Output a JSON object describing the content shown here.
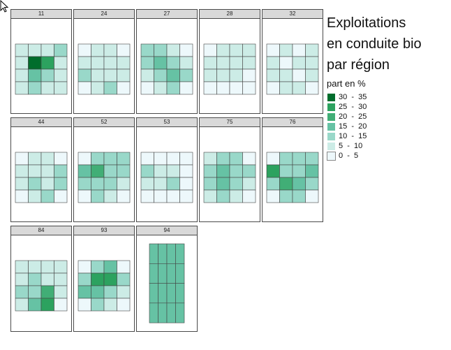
{
  "title_lines": [
    "Exploitations",
    "en conduite bio",
    "par région"
  ],
  "legend": {
    "title": "part en %",
    "classes": [
      {
        "label": "30  -  35",
        "color": "#006d2c"
      },
      {
        "label": "25  -  30",
        "color": "#2ca25f"
      },
      {
        "label": "20  -  25",
        "color": "#41ae76"
      },
      {
        "label": "15  -  20",
        "color": "#66c2a4"
      },
      {
        "label": "10  -  15",
        "color": "#99d8c9"
      },
      {
        "label": "5  -  10",
        "color": "#ccece6"
      },
      {
        "label": "0  -  5",
        "color": "#edf8fb"
      }
    ]
  },
  "panels": [
    {
      "label": "11",
      "cells": [
        [
          5,
          5,
          5,
          4
        ],
        [
          5,
          0,
          1,
          5
        ],
        [
          5,
          3,
          4,
          5
        ],
        [
          5,
          4,
          5,
          5
        ]
      ]
    },
    {
      "label": "24",
      "cells": [
        [
          6,
          5,
          5,
          6
        ],
        [
          5,
          5,
          5,
          5
        ],
        [
          4,
          5,
          5,
          5
        ],
        [
          6,
          5,
          4,
          6
        ]
      ]
    },
    {
      "label": "27",
      "cells": [
        [
          4,
          4,
          5,
          6
        ],
        [
          4,
          3,
          4,
          5
        ],
        [
          5,
          4,
          3,
          4
        ],
        [
          6,
          5,
          4,
          6
        ]
      ]
    },
    {
      "label": "28",
      "cells": [
        [
          6,
          5,
          5,
          5
        ],
        [
          5,
          5,
          5,
          5
        ],
        [
          5,
          5,
          5,
          6
        ],
        [
          6,
          6,
          6,
          6
        ]
      ]
    },
    {
      "label": "32",
      "cells": [
        [
          6,
          5,
          6,
          5
        ],
        [
          5,
          6,
          5,
          5
        ],
        [
          5,
          5,
          6,
          5
        ],
        [
          6,
          5,
          5,
          6
        ]
      ]
    },
    {
      "label": "44",
      "cells": [
        [
          6,
          5,
          5,
          6
        ],
        [
          5,
          5,
          5,
          4
        ],
        [
          5,
          4,
          5,
          4
        ],
        [
          6,
          5,
          4,
          6
        ]
      ]
    },
    {
      "label": "52",
      "cells": [
        [
          6,
          4,
          4,
          4
        ],
        [
          3,
          2,
          4,
          4
        ],
        [
          4,
          4,
          4,
          5
        ],
        [
          6,
          4,
          5,
          6
        ]
      ]
    },
    {
      "label": "53",
      "cells": [
        [
          6,
          6,
          6,
          6
        ],
        [
          4,
          5,
          5,
          6
        ],
        [
          5,
          5,
          4,
          6
        ],
        [
          6,
          6,
          6,
          6
        ]
      ]
    },
    {
      "label": "75",
      "cells": [
        [
          5,
          4,
          4,
          6
        ],
        [
          4,
          3,
          4,
          4
        ],
        [
          4,
          3,
          4,
          5
        ],
        [
          5,
          4,
          5,
          6
        ]
      ]
    },
    {
      "label": "76",
      "cells": [
        [
          6,
          4,
          4,
          4
        ],
        [
          1,
          4,
          4,
          3
        ],
        [
          4,
          2,
          3,
          4
        ],
        [
          6,
          4,
          4,
          6
        ]
      ]
    },
    {
      "label": "84",
      "cells": [
        [
          5,
          5,
          5,
          5
        ],
        [
          5,
          4,
          5,
          5
        ],
        [
          4,
          4,
          2,
          5
        ],
        [
          5,
          3,
          1,
          6
        ]
      ]
    },
    {
      "label": "93",
      "cells": [
        [
          6,
          4,
          3,
          6
        ],
        [
          4,
          1,
          1,
          4
        ],
        [
          3,
          3,
          4,
          5
        ],
        [
          6,
          4,
          5,
          6
        ]
      ]
    },
    {
      "label": "94",
      "cells": [
        [
          3,
          3,
          3,
          3
        ],
        [
          3,
          3,
          3,
          3
        ],
        [
          3,
          3,
          3,
          3
        ],
        [
          3,
          3,
          3,
          3
        ]
      ]
    }
  ]
}
